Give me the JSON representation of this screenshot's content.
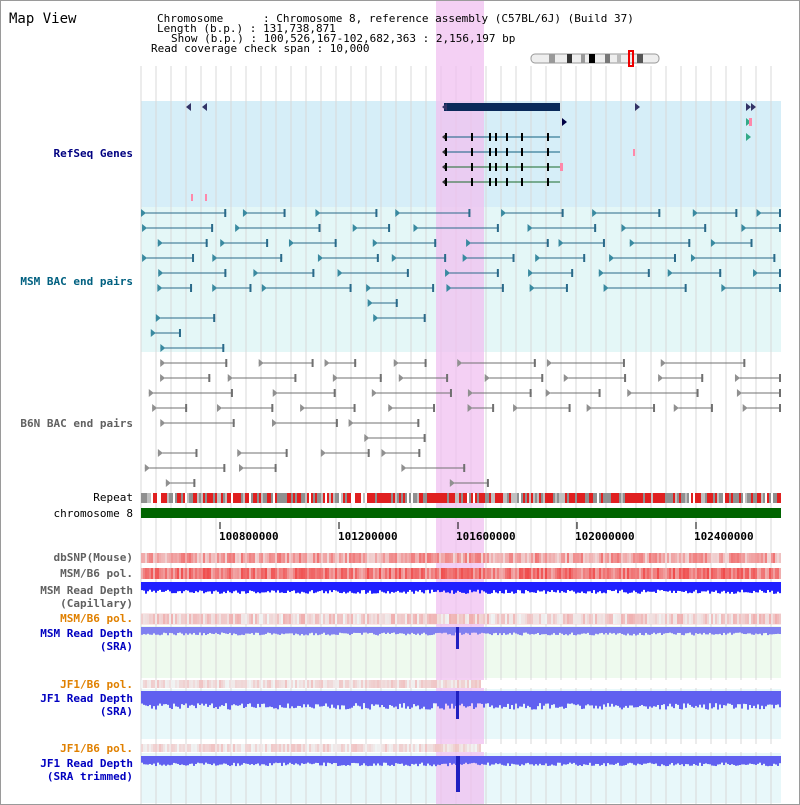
{
  "title": "Map View",
  "header": {
    "line1": "Chromosome      : Chromosome 8, reference assembly (C57BL/6J) (Build 37)",
    "line2": "Length (b.p.) : 131,738,871",
    "line3": "Show (b.p.) : 100,526,167-102,682,363 : 2,156,197 bp",
    "line4": "Read coverage check span : 10,000"
  },
  "tracks": {
    "refseq": "RefSeq Genes",
    "msm_bac": "MSM BAC end pairs",
    "b6n_bac": "B6N BAC end pairs",
    "repeat": "Repeat",
    "chromosome": "chromosome 8",
    "dbsnp": "dbSNP(Mouse)",
    "msm_b6_pol_1": "MSM/B6 pol.",
    "msm_depth_cap_1": "MSM Read Depth",
    "msm_depth_cap_2": "(Capillary)",
    "msm_b6_pol_2": "MSM/B6 pol.",
    "msm_depth_sra_1": "MSM Read Depth",
    "msm_depth_sra_2": "(SRA)",
    "jf1_b6_pol_1": "JF1/B6 pol.",
    "jf1_depth_sra_1": "JF1 Read Depth",
    "jf1_depth_sra_2": "(SRA)",
    "jf1_b6_pol_2": "JF1/B6 pol.",
    "jf1_depth_trim_1": "JF1 Read Depth",
    "jf1_depth_trim_2": "(SRA trimmed)"
  },
  "axis_ticks": [
    "100800000",
    "101200000",
    "101600000",
    "102000000",
    "102400000"
  ],
  "colors": {
    "refseq_label": "#000080",
    "msm_label": "#006080",
    "b6n_label": "#606060",
    "pol_orange": "#e08000",
    "depth_blue": "#0000c0",
    "highlight": "#f0c0f0",
    "refseq_bg": "#d6eef8",
    "msm_bg": "#e4f7f7",
    "chrom_green": "#006400"
  }
}
